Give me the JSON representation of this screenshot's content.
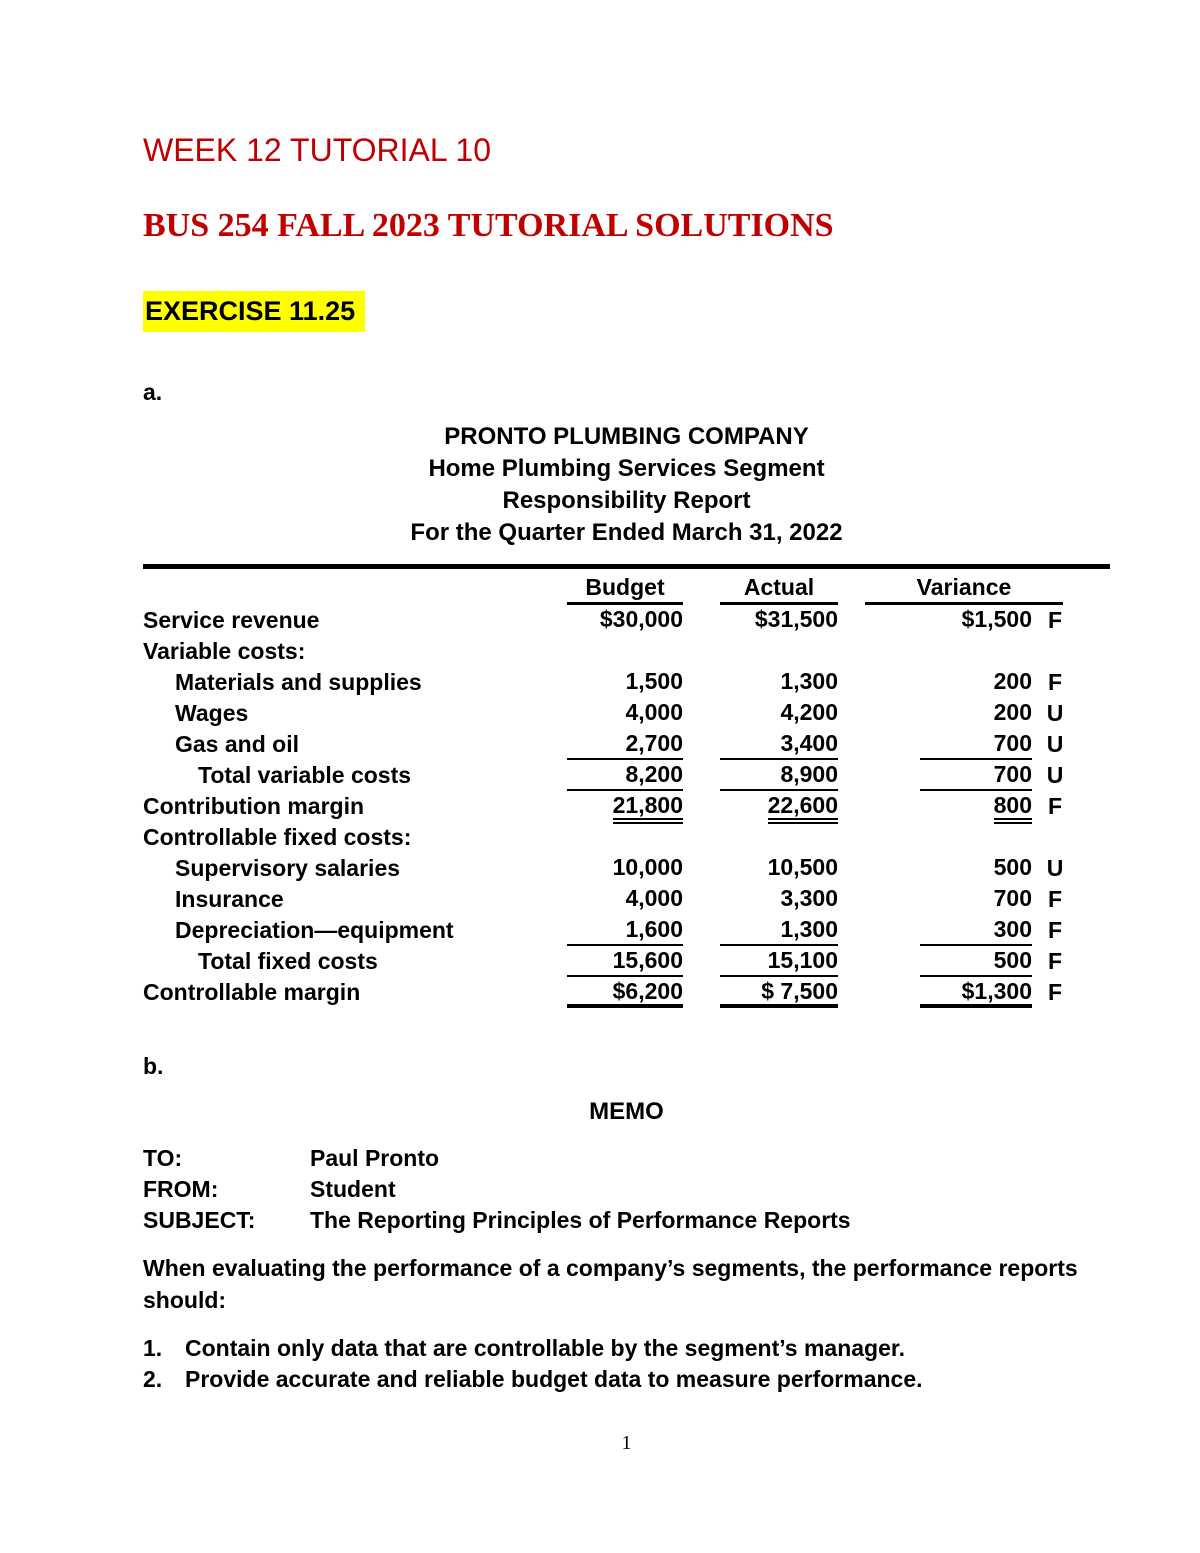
{
  "titles": {
    "week": "WEEK 12 TUTORIAL 10",
    "course": "BUS 254 FALL 2023 TUTORIAL SOLUTIONS",
    "exercise": "EXERCISE 11.25"
  },
  "sections": {
    "part_a": "a.",
    "part_b": "b."
  },
  "report": {
    "heading": {
      "company": "PRONTO PLUMBING COMPANY",
      "segment": "Home Plumbing Services Segment",
      "report_name": "Responsibility Report",
      "period": "For the Quarter Ended March 31, 2022"
    },
    "columns": {
      "budget": "Budget",
      "actual": "Actual",
      "variance": "Variance"
    },
    "rows": [
      {
        "label": "Service revenue",
        "budget": "$30,000",
        "actual": "$31,500",
        "variance": "$1,500",
        "fu": "F"
      },
      {
        "label": "Variable costs:"
      },
      {
        "label": "Materials and supplies",
        "budget": "1,500",
        "actual": "1,300",
        "variance": "200",
        "fu": "F"
      },
      {
        "label": "Wages",
        "budget": "4,000",
        "actual": "4,200",
        "variance": "200",
        "fu": "U"
      },
      {
        "label": "Gas and oil",
        "budget": "2,700",
        "actual": "3,400",
        "variance": "700",
        "fu": "U"
      },
      {
        "label": "Total variable costs",
        "budget": "8,200",
        "actual": "8,900",
        "variance": "700",
        "fu": "U"
      },
      {
        "label": "Contribution margin",
        "budget": "21,800",
        "actual": "22,600",
        "variance": "800",
        "fu": "F"
      },
      {
        "label": "Controllable fixed costs:"
      },
      {
        "label": "Supervisory salaries",
        "budget": "10,000",
        "actual": "10,500",
        "variance": "500",
        "fu": "U"
      },
      {
        "label": "Insurance",
        "budget": "4,000",
        "actual": "3,300",
        "variance": "700",
        "fu": "F"
      },
      {
        "label": "Depreciation—equipment",
        "budget": "1,600",
        "actual": "1,300",
        "variance": "300",
        "fu": "F"
      },
      {
        "label": "Total fixed costs",
        "budget": "15,600",
        "actual": "15,100",
        "variance": "500",
        "fu": "F"
      },
      {
        "label": "Controllable margin",
        "budget": "$6,200",
        "actual": "$ 7,500",
        "variance": "$1,300",
        "fu": "F"
      }
    ]
  },
  "memo": {
    "title": "MEMO",
    "fields": [
      {
        "label": "TO:",
        "value": "Paul Pronto"
      },
      {
        "label": "FROM:",
        "value": "Student"
      },
      {
        "label": "SUBJECT:",
        "value": "The Reporting Principles of Performance Reports"
      }
    ],
    "paragraph": "When evaluating the performance of a company’s segments, the performance reports should:",
    "list": [
      {
        "num": "1.",
        "text": "Contain only data that are controllable by the segment’s manager."
      },
      {
        "num": "2.",
        "text": "Provide accurate and reliable budget data to measure performance."
      }
    ]
  },
  "page_number": "1",
  "colors": {
    "accent_red": "#C00000",
    "highlight_yellow": "#FFFF00"
  }
}
